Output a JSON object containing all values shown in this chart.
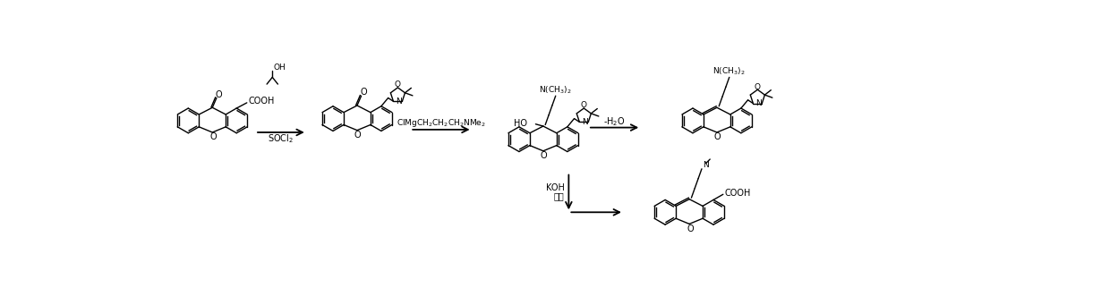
{
  "figsize": [
    12.39,
    3.22
  ],
  "dpi": 100,
  "bg": "#ffffff",
  "lc": "#000000",
  "lw": 1.0,
  "fs": 7.5,
  "reagent1": "SOCl$_2$",
  "reagent2": "ClMgCH$_2$CH$_2$CH$_2$NMe$_2$",
  "reagent3": "-H$_2$O",
  "reagent4a": "KOH",
  "reagent4b": "水解",
  "label_COOH": "COOH",
  "label_OH": "OH",
  "label_HO": "HO",
  "label_O": "O",
  "label_N": "N",
  "font": "DejaVu Sans"
}
